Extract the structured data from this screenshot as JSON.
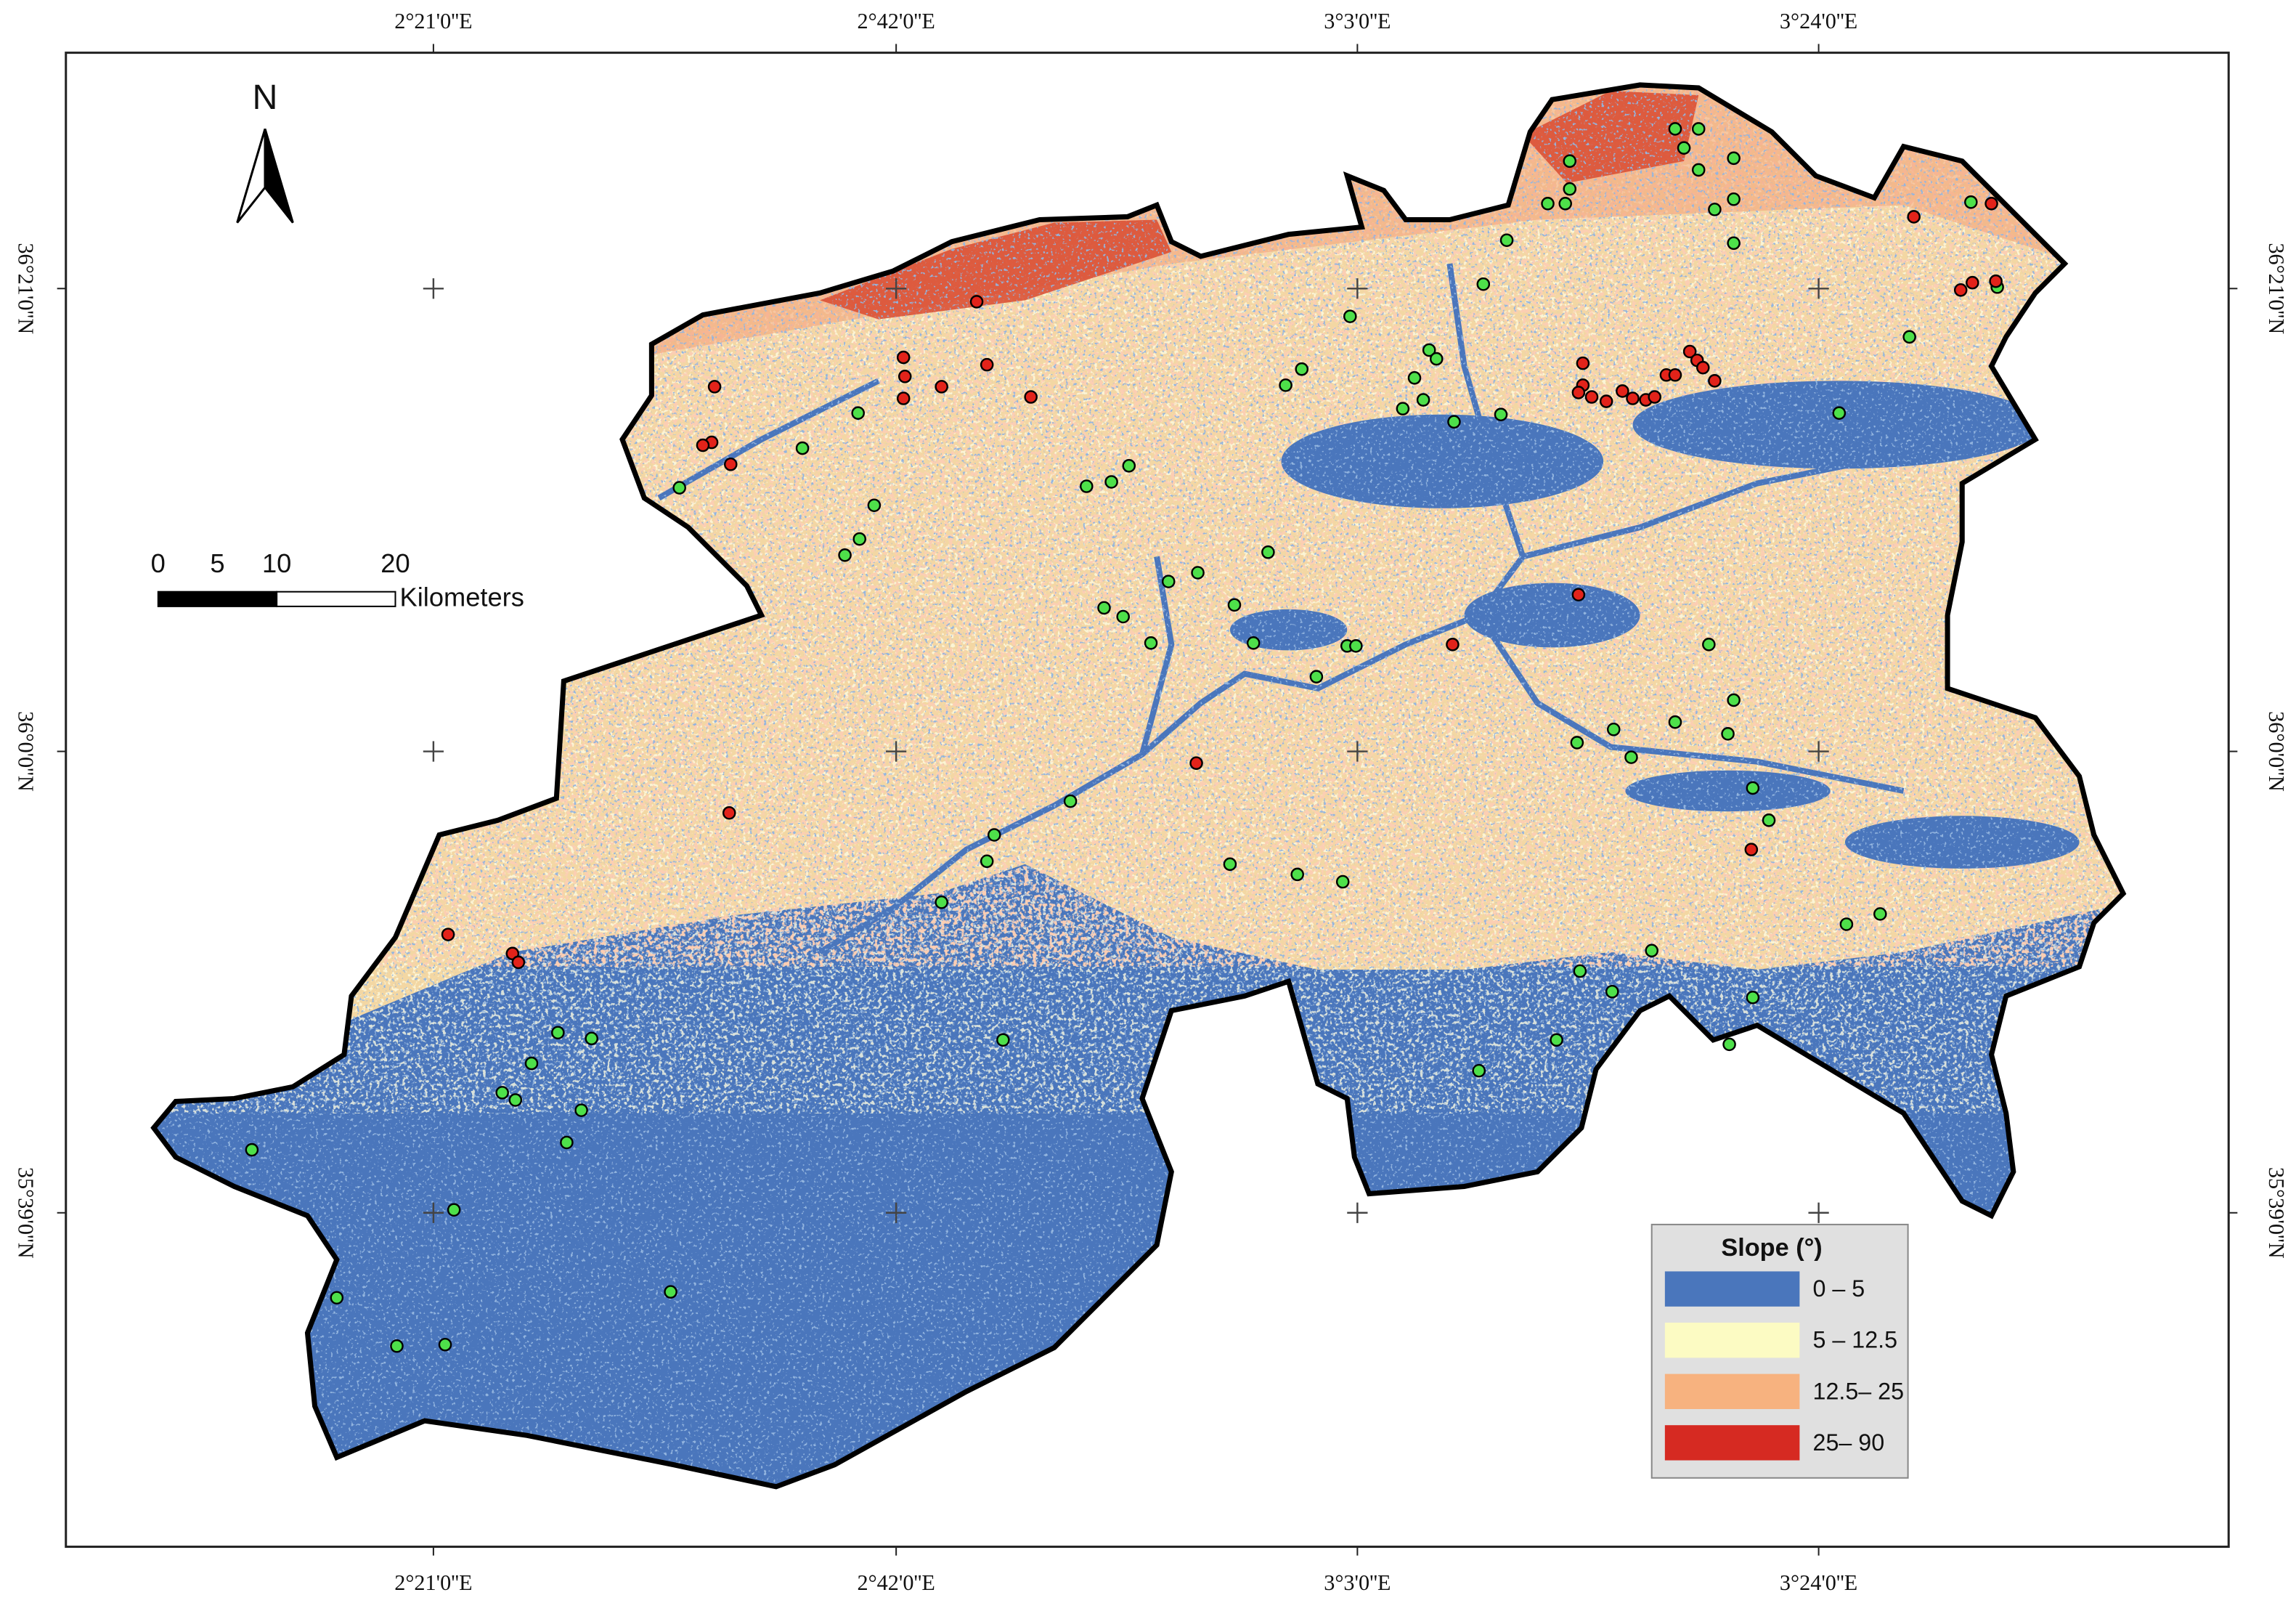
{
  "north_label": "N",
  "scale_bar": {
    "ticks": [
      0,
      5,
      10,
      20
    ],
    "unit": "Kilometers"
  },
  "graticule": {
    "longitudes": [
      "2°21'0''E",
      "2°42'0''E",
      "3°3'0''E",
      "3°24'0''E"
    ],
    "latitudes": [
      "36°21'0''N",
      "36°0'0''N",
      "35°39'0''N"
    ]
  },
  "legend": {
    "title": "Slope (°)",
    "items": [
      {
        "label": "0 – 5",
        "color": "#4a76bc"
      },
      {
        "label": "5 – 12.5",
        "color": "#fcfbc3"
      },
      {
        "label": "12.5– 25",
        "color": "#f7b27f"
      },
      {
        "label": "25– 90",
        "color": "#d62a22"
      }
    ]
  }
}
